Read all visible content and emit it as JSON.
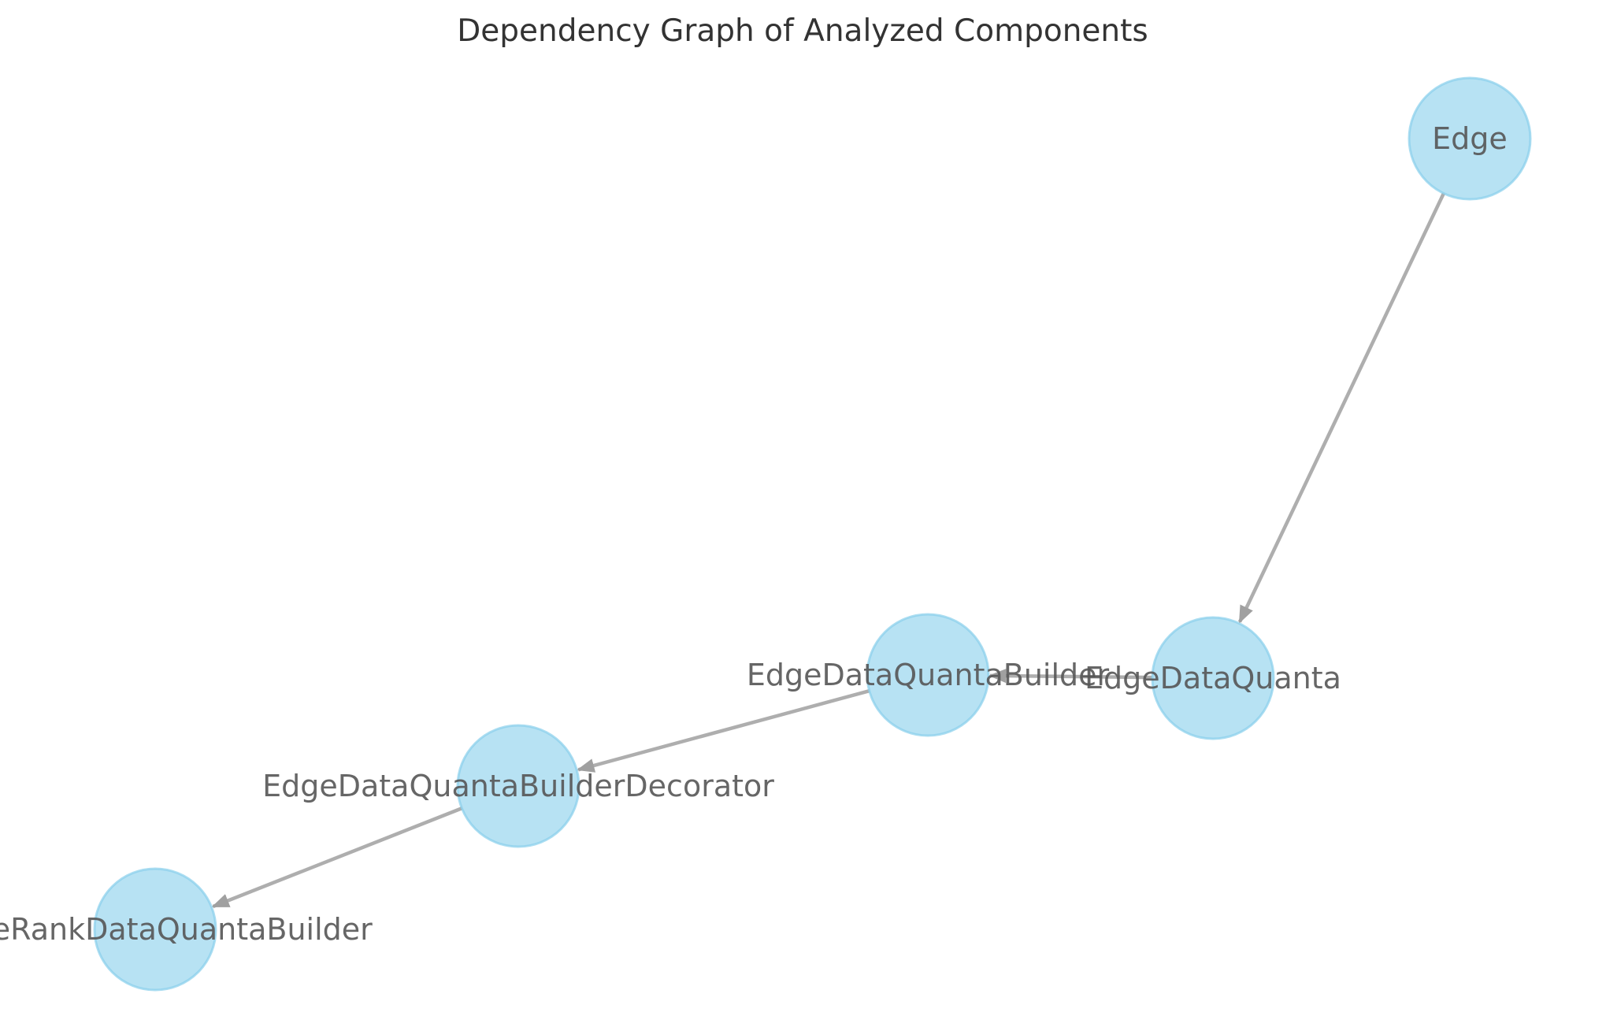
{
  "diagram": {
    "title": "Dependency Graph of Analyzed Components",
    "colors": {
      "node_fill": "#87ceeb",
      "node_stroke": "#87ceeb",
      "edge": "#a0a0a0",
      "label": "#555555",
      "title": "#333333",
      "background": "#ffffff"
    },
    "nodes": [
      {
        "id": "edge",
        "label": "Edge"
      },
      {
        "id": "edge-data-quanta",
        "label": "EdgeDataQuanta"
      },
      {
        "id": "edge-data-quanta-builder",
        "label": "EdgeDataQuantaBuilder"
      },
      {
        "id": "edge-data-quanta-builder-decorator",
        "label": "EdgeDataQuantaBuilderDecorator"
      },
      {
        "id": "page-rank-data-quanta-builder",
        "label": "PageRankDataQuantaBuilder"
      }
    ],
    "edges": [
      {
        "from": "edge",
        "to": "edge-data-quanta"
      },
      {
        "from": "edge-data-quanta",
        "to": "edge-data-quanta-builder"
      },
      {
        "from": "edge-data-quanta-builder",
        "to": "edge-data-quanta-builder-decorator"
      },
      {
        "from": "edge-data-quanta-builder-decorator",
        "to": "page-rank-data-quanta-builder"
      }
    ]
  }
}
